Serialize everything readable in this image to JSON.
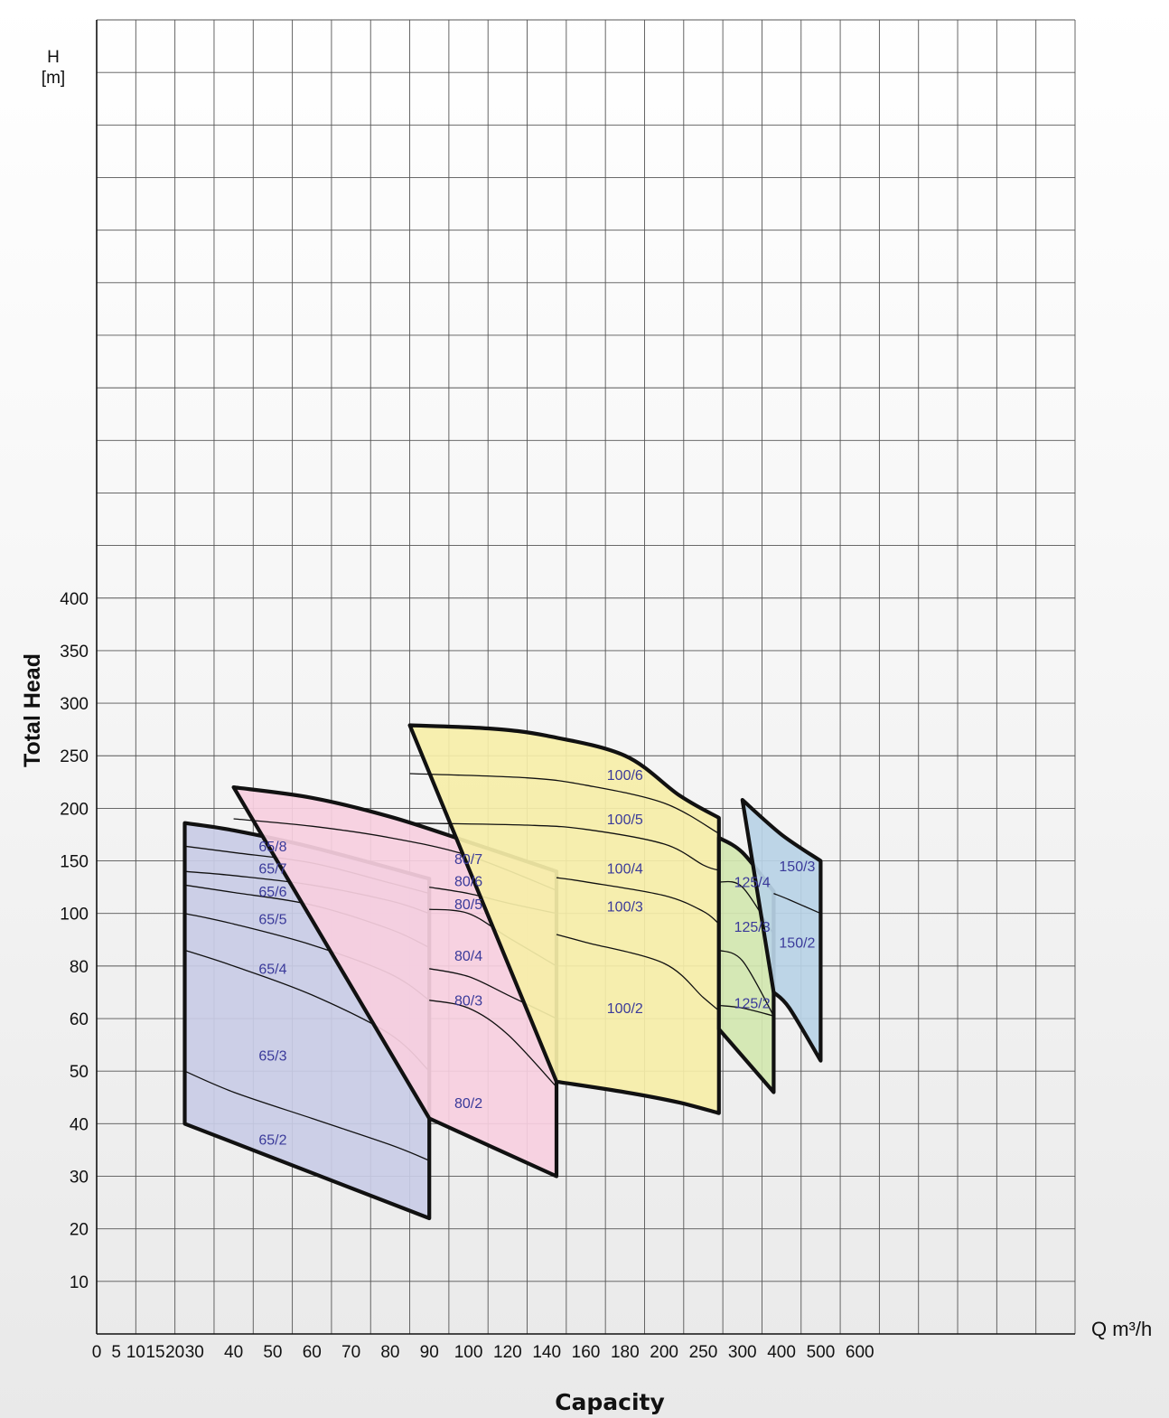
{
  "chart_data": {
    "type": "line",
    "title": "",
    "xlabel": "Capacity",
    "x_unit": "Q m³/h",
    "ylabel": "Total Head",
    "y_unit_top": "H",
    "y_unit_bottom": "[m]",
    "grid": true,
    "x_ticks": [
      "0",
      "5",
      "10",
      "15",
      "20",
      "30",
      "40",
      "50",
      "60",
      "70",
      "80",
      "90",
      "100",
      "120",
      "140",
      "160",
      "180",
      "200",
      "250",
      "300",
      "400",
      "500",
      "600"
    ],
    "y_ticks": [
      "10",
      "20",
      "30",
      "40",
      "50",
      "60",
      "80",
      "100",
      "150",
      "200",
      "250",
      "300",
      "350",
      "400"
    ],
    "families": [
      {
        "name": "65",
        "color": "#c9cce6",
        "upper": [
          [
            25,
            186
          ],
          [
            40,
            179
          ],
          [
            60,
            163
          ],
          [
            90,
            133
          ]
        ],
        "lower": [
          [
            25,
            40
          ],
          [
            90,
            22
          ]
        ],
        "curves": [
          {
            "label": "65/8",
            "points": [
              [
                25,
                164
              ],
              [
                40,
                158
              ],
              [
                60,
                148
              ],
              [
                80,
                129
              ],
              [
                90,
                119
              ]
            ]
          },
          {
            "label": "65/7",
            "points": [
              [
                25,
                140
              ],
              [
                40,
                136
              ],
              [
                60,
                127
              ],
              [
                80,
                112
              ],
              [
                90,
                100
              ]
            ]
          },
          {
            "label": "65/6",
            "points": [
              [
                25,
                127
              ],
              [
                40,
                120
              ],
              [
                60,
                108
              ],
              [
                80,
                94
              ],
              [
                90,
                87
              ]
            ]
          },
          {
            "label": "65/5",
            "points": [
              [
                25,
                100
              ],
              [
                40,
                96
              ],
              [
                60,
                88
              ],
              [
                80,
                77
              ],
              [
                90,
                67
              ]
            ]
          },
          {
            "label": "65/4",
            "points": [
              [
                25,
                86
              ],
              [
                40,
                80
              ],
              [
                60,
                69
              ],
              [
                80,
                57
              ],
              [
                90,
                50
              ]
            ]
          },
          {
            "label": "65/2",
            "points": [
              [
                25,
                50
              ],
              [
                40,
                46
              ],
              [
                60,
                41
              ],
              [
                80,
                36
              ],
              [
                90,
                33
              ]
            ]
          }
        ],
        "labels": [
          {
            "text": "65/8",
            "x": 50,
            "y": 159
          },
          {
            "text": "65/7",
            "x": 50,
            "y": 138
          },
          {
            "text": "65/6",
            "x": 50,
            "y": 116
          },
          {
            "text": "65/5",
            "x": 50,
            "y": 96
          },
          {
            "text": "65/4",
            "x": 50,
            "y": 77
          },
          {
            "text": "65/3",
            "x": 50,
            "y": 52
          },
          {
            "text": "65/2",
            "x": 50,
            "y": 36
          }
        ]
      },
      {
        "name": "80",
        "color": "#f7cfe0",
        "upper": [
          [
            40,
            220
          ],
          [
            60,
            210
          ],
          [
            80,
            192
          ],
          [
            100,
            168
          ],
          [
            145,
            140
          ]
        ],
        "lower": [
          [
            90,
            41
          ],
          [
            145,
            30
          ]
        ],
        "curves": [
          {
            "label": "80/7",
            "points": [
              [
                40,
                190
              ],
              [
                60,
                183
              ],
              [
                80,
                172
              ],
              [
                100,
                155
              ],
              [
                145,
                122
              ]
            ]
          },
          {
            "label": "80/6",
            "points": [
              [
                90,
                125
              ],
              [
                100,
                119
              ],
              [
                120,
                110
              ],
              [
                145,
                100
              ]
            ]
          },
          {
            "label": "80/5",
            "points": [
              [
                90,
                104
              ],
              [
                100,
                100
              ],
              [
                120,
                91
              ],
              [
                145,
                80
              ]
            ]
          },
          {
            "label": "80/4",
            "points": [
              [
                90,
                79
              ],
              [
                100,
                76
              ],
              [
                120,
                69
              ],
              [
                145,
                60
              ]
            ]
          },
          {
            "label": "80/3",
            "points": [
              [
                90,
                67
              ],
              [
                100,
                64
              ],
              [
                120,
                57
              ],
              [
                145,
                47
              ]
            ]
          }
        ],
        "labels": [
          {
            "text": "80/7",
            "x": 100,
            "y": 147
          },
          {
            "text": "80/6",
            "x": 100,
            "y": 126
          },
          {
            "text": "80/5",
            "x": 100,
            "y": 104
          },
          {
            "text": "80/4",
            "x": 100,
            "y": 82
          },
          {
            "text": "80/3",
            "x": 100,
            "y": 65
          },
          {
            "text": "80/2",
            "x": 100,
            "y": 43
          }
        ]
      },
      {
        "name": "100",
        "color": "#f6eea8",
        "upper": [
          [
            85,
            279
          ],
          [
            110,
            276
          ],
          [
            140,
            269
          ],
          [
            180,
            250
          ],
          [
            220,
            212
          ],
          [
            270,
            191
          ]
        ],
        "lower": [
          [
            145,
            48
          ],
          [
            180,
            46
          ],
          [
            220,
            44
          ],
          [
            270,
            42
          ]
        ],
        "curves": [
          {
            "label": "100/6",
            "points": [
              [
                85,
                233
              ],
              [
                130,
                229
              ],
              [
                160,
                222
              ],
              [
                200,
                205
              ],
              [
                270,
                176
              ]
            ]
          },
          {
            "label": "100/5",
            "points": [
              [
                85,
                186
              ],
              [
                130,
                184
              ],
              [
                160,
                180
              ],
              [
                200,
                166
              ],
              [
                250,
                146
              ],
              [
                270,
                141
              ]
            ]
          },
          {
            "label": "100/4",
            "points": [
              [
                145,
                134
              ],
              [
                160,
                130
              ],
              [
                200,
                117
              ],
              [
                250,
                102
              ],
              [
                270,
                96
              ]
            ]
          },
          {
            "label": "100/3",
            "points": [
              [
                145,
                92
              ],
              [
                160,
                89
              ],
              [
                200,
                81
              ],
              [
                250,
                68
              ],
              [
                270,
                63
              ]
            ]
          }
        ],
        "labels": [
          {
            "text": "100/6",
            "x": 180,
            "y": 227
          },
          {
            "text": "100/5",
            "x": 180,
            "y": 185
          },
          {
            "text": "100/4",
            "x": 180,
            "y": 138
          },
          {
            "text": "100/3",
            "x": 180,
            "y": 102
          },
          {
            "text": "100/2",
            "x": 180,
            "y": 62
          }
        ]
      },
      {
        "name": "125",
        "color": "#d2e7b0",
        "upper": [
          [
            270,
            172
          ],
          [
            300,
            158
          ],
          [
            380,
            121
          ]
        ],
        "lower": [
          [
            270,
            58
          ],
          [
            380,
            46
          ]
        ],
        "curves": [
          {
            "label": "125/4",
            "points": [
              [
                270,
                130
              ],
              [
                300,
                125
              ],
              [
                380,
                92
              ]
            ]
          },
          {
            "label": "125/3",
            "points": [
              [
                270,
                86
              ],
              [
                300,
                82
              ],
              [
                380,
                61
              ]
            ]
          },
          {
            "label": "125/2",
            "points": [
              [
                270,
                65
              ],
              [
                300,
                64
              ],
              [
                380,
                61
              ]
            ]
          }
        ],
        "labels": [
          {
            "text": "125/4",
            "x": 325,
            "y": 125
          },
          {
            "text": "125/3",
            "x": 325,
            "y": 93
          },
          {
            "text": "125/2",
            "x": 325,
            "y": 64
          }
        ]
      },
      {
        "name": "150",
        "color": "#b8d3e6",
        "upper": [
          [
            300,
            208
          ],
          [
            400,
            175
          ],
          [
            500,
            150
          ]
        ],
        "lower": [
          [
            380,
            70
          ],
          [
            420,
            64
          ],
          [
            500,
            52
          ]
        ],
        "curves": [
          {
            "label": "150/3",
            "points": [
              [
                380,
                119
              ],
              [
                420,
                113
              ],
              [
                500,
                100
              ]
            ]
          }
        ],
        "labels": [
          {
            "text": "150/3",
            "x": 440,
            "y": 140
          },
          {
            "text": "150/2",
            "x": 440,
            "y": 87
          }
        ]
      }
    ]
  }
}
